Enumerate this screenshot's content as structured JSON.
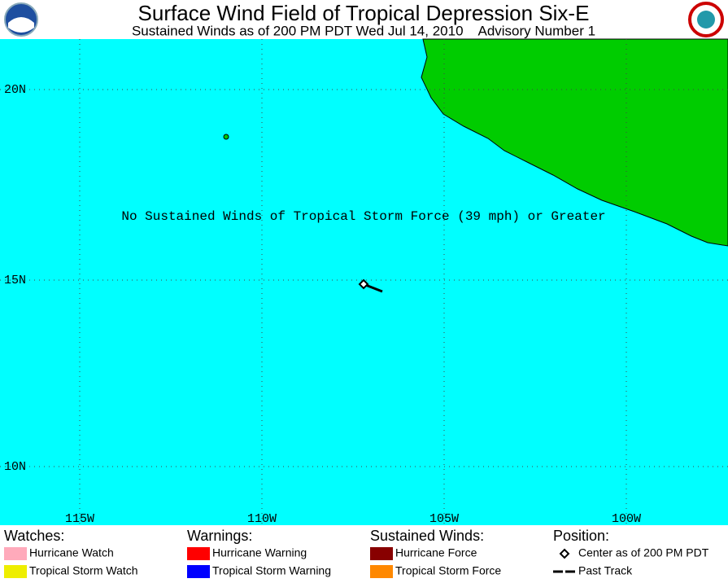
{
  "header": {
    "title": "Surface Wind Field of Tropical Depression Six-E",
    "subtitle": "Sustained Winds as of 200 PM PDT Wed Jul 14, 2010    Advisory Number 1"
  },
  "map": {
    "lat_labels": [
      "20N",
      "15N",
      "10N"
    ],
    "lon_labels": [
      "115W",
      "110W",
      "105W",
      "100W"
    ],
    "annotation": "No Sustained Winds of Tropical Storm Force (39 mph) or Greater"
  },
  "legend": {
    "sections": [
      {
        "title": "Watches:",
        "items": [
          {
            "label": "Hurricane Watch",
            "color": "#ffaabb"
          },
          {
            "label": "Tropical Storm Watch",
            "color": "#eeee00"
          }
        ]
      },
      {
        "title": "Warnings:",
        "items": [
          {
            "label": "Hurricane Warning",
            "color": "#ff0000"
          },
          {
            "label": "Tropical Storm Warning",
            "color": "#0000ff"
          }
        ]
      },
      {
        "title": "Sustained Winds:",
        "items": [
          {
            "label": "Hurricane Force",
            "color": "#880000"
          },
          {
            "label": "Tropical Storm Force",
            "color": "#ff8800"
          }
        ]
      },
      {
        "title": "Position:",
        "items": [
          {
            "label": "Center as of 200 PM PDT"
          },
          {
            "label": "Past Track"
          }
        ]
      }
    ]
  }
}
